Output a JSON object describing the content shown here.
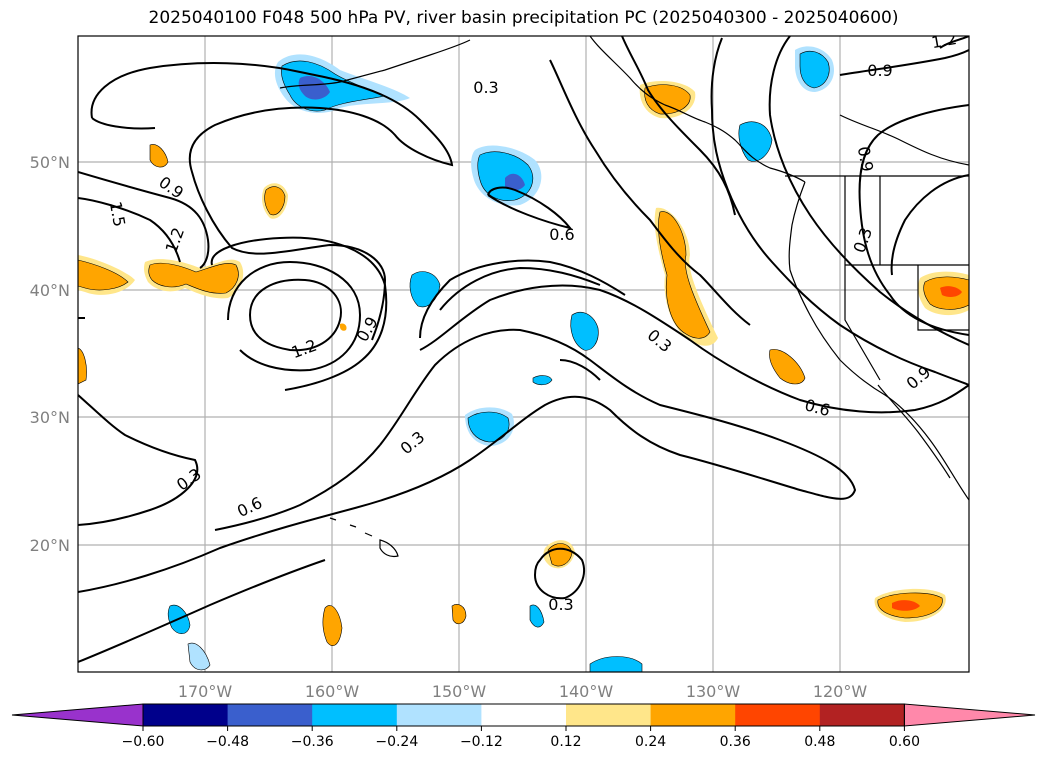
{
  "title": "2025040100 F048 500 hPa PV, river basin precipitation PC (2025040300 - 2025040600)",
  "lat_labels": [
    "50°N",
    "40°N",
    "30°N",
    "20°N"
  ],
  "lon_labels": [
    "170°W",
    "160°W",
    "150°W",
    "140°W",
    "130°W",
    "120°W"
  ],
  "contour_labels": [
    "0.3",
    "0.9",
    "0.9",
    "1.5",
    "1.2",
    "1.2",
    "0.9",
    "0.6",
    "0.3",
    "0.6",
    "0.3",
    "0.6",
    "0.3",
    "0.9",
    "0.3",
    "0.9",
    "0.3",
    "1.2"
  ],
  "colorbar": {
    "ticks": [
      "−0.60",
      "−0.48",
      "−0.36",
      "−0.24",
      "−0.12",
      "0.12",
      "0.24",
      "0.36",
      "0.48",
      "0.60"
    ],
    "colors": [
      "#9932cc",
      "#00008b",
      "#3a5fcd",
      "#00bfff",
      "#b0e2ff",
      "#ffffff",
      "#ffe68a",
      "#ffa500",
      "#ff4500",
      "#b22222",
      "#ff88aa"
    ]
  }
}
